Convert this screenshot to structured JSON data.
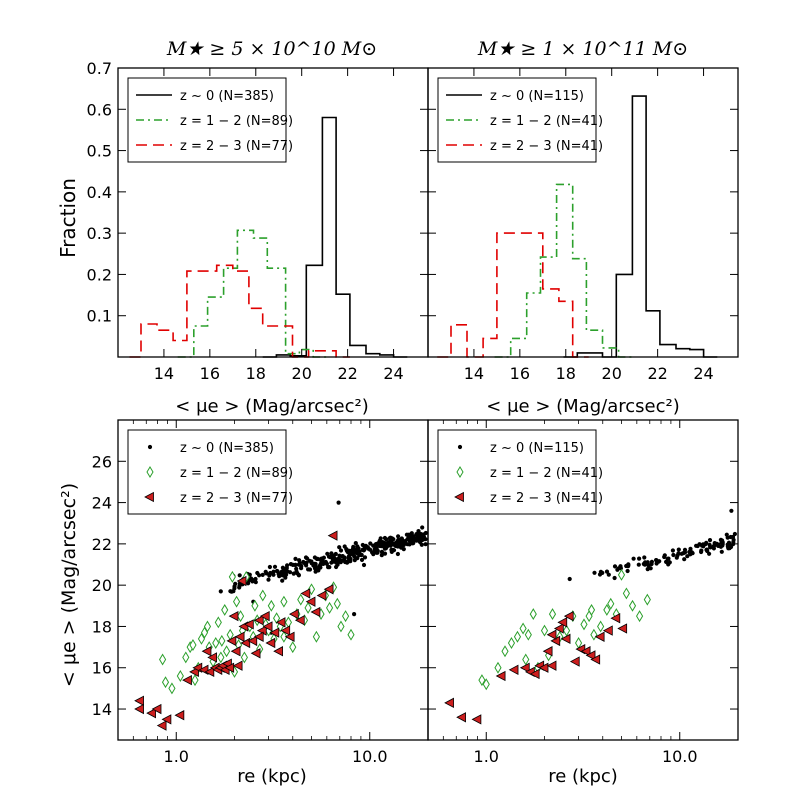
{
  "figure": {
    "titles": [
      "M★ ≥ 5 × 10^10 M⊙",
      "M★ ≥ 1 × 10^11 M⊙"
    ],
    "hist_xlabel": "< μe > (Mag/arcsec²)",
    "hist_ylabel": "Fraction",
    "scatter_xlabel": "re (kpc)",
    "scatter_ylabel": "< μe > (Mag/arcsec²)"
  },
  "colors": {
    "z0": "#000000",
    "z12": "#2ca02c",
    "z23": "#e00000",
    "z23_fill": "#cc1e1e"
  },
  "chart_data": [
    {
      "type": "histogram",
      "panel": "top-left",
      "title": "M★ ≥ 5 × 10^10 M⊙",
      "ylabel": "Fraction",
      "xlabel": "< μe > (Mag/arcsec²)",
      "xlim": [
        12.0,
        25.5
      ],
      "ylim": [
        0.0,
        0.7
      ],
      "xticks": [
        14,
        16,
        18,
        20,
        22,
        24
      ],
      "yticks": [
        0.1,
        0.2,
        0.3,
        0.4,
        0.5,
        0.6,
        0.7
      ],
      "legend": {
        "position": "top-left",
        "entries": [
          "z ~ 0 (N=385)",
          "z = 1 − 2 (N=89)",
          "z = 2 − 3 (N=77)"
        ]
      },
      "series": [
        {
          "name": "z ~ 0 (N=385)",
          "style": "solid",
          "color": "#000000",
          "edges": [
            18.3,
            18.9,
            19.5,
            20.2,
            20.9,
            21.5,
            22.1,
            22.8,
            23.4,
            24.0,
            24.6
          ],
          "values": [
            0.0,
            0.005,
            0.003,
            0.222,
            0.58,
            0.152,
            0.028,
            0.008,
            0.005,
            0.0
          ]
        },
        {
          "name": "z = 1 − 2 (N=89)",
          "style": "dashdot",
          "color": "#2ca02c",
          "edges": [
            14.6,
            15.3,
            15.9,
            16.6,
            17.2,
            17.9,
            18.5,
            19.3,
            19.9,
            20.5,
            21.1
          ],
          "values": [
            0.0,
            0.075,
            0.145,
            0.215,
            0.307,
            0.288,
            0.215,
            0.008,
            0.018,
            0.0
          ]
        },
        {
          "name": "z = 2 − 3 (N=77)",
          "style": "dashed",
          "color": "#e00000",
          "edges": [
            12.5,
            13.0,
            13.7,
            14.4,
            15.0,
            15.7,
            16.3,
            17.0,
            17.7,
            18.3,
            19.0,
            19.6,
            20.3,
            20.9,
            21.5,
            22.1
          ],
          "values": [
            0.0,
            0.08,
            0.065,
            0.04,
            0.208,
            0.208,
            0.222,
            0.208,
            0.118,
            0.075,
            0.075,
            0.0,
            0.015,
            0.015,
            0.0
          ]
        }
      ]
    },
    {
      "type": "histogram",
      "panel": "top-right",
      "title": "M★ ≥ 1 × 10^11 M⊙",
      "xlabel": "< μe > (Mag/arcsec²)",
      "xlim": [
        12.0,
        25.5
      ],
      "ylim": [
        0.0,
        0.7
      ],
      "xticks": [
        14,
        16,
        18,
        20,
        22,
        24
      ],
      "legend": {
        "position": "top-left",
        "entries": [
          "z ~ 0 (N=115)",
          "z = 1 − 2 (N=41)",
          "z = 2 − 3 (N=41)"
        ]
      },
      "series": [
        {
          "name": "z ~ 0 (N=115)",
          "style": "solid",
          "color": "#000000",
          "edges": [
            17.9,
            18.5,
            19.6,
            20.2,
            20.9,
            21.5,
            22.1,
            22.8,
            23.4,
            24.0,
            24.6
          ],
          "values": [
            0.0,
            0.01,
            0.0,
            0.2,
            0.632,
            0.112,
            0.03,
            0.02,
            0.018,
            0.0
          ]
        },
        {
          "name": "z = 1 − 2 (N=41)",
          "style": "dashdot",
          "color": "#2ca02c",
          "edges": [
            14.9,
            15.6,
            16.3,
            16.9,
            17.6,
            18.3,
            18.9,
            19.6,
            20.3,
            20.9
          ],
          "values": [
            0.0,
            0.045,
            0.155,
            0.242,
            0.418,
            0.238,
            0.065,
            0.022,
            0.0
          ]
        },
        {
          "name": "z = 2 − 3 (N=41)",
          "style": "dashed",
          "color": "#e00000",
          "edges": [
            12.4,
            13.0,
            13.7,
            14.4,
            15.0,
            15.7,
            16.3,
            17.0,
            17.7,
            18.3,
            19.0
          ],
          "values": [
            0.0,
            0.078,
            0.0,
            0.045,
            0.3,
            0.3,
            0.3,
            0.165,
            0.135,
            0.0
          ]
        }
      ]
    },
    {
      "type": "scatter",
      "panel": "bottom-left",
      "xscale": "log",
      "xlabel": "re (kpc)",
      "ylabel": "< μe > (Mag/arcsec²)",
      "xlim": [
        0.5,
        20.0
      ],
      "ylim": [
        12.5,
        28.0
      ],
      "xticks": [
        1.0,
        10.0
      ],
      "yticks": [
        14,
        16,
        18,
        20,
        22,
        24,
        26
      ],
      "legend": {
        "position": "top-left",
        "entries": [
          "z ~ 0 (N=385)",
          "z = 1 − 2 (N=89)",
          "z = 2 − 3 (N=77)"
        ]
      },
      "series": [
        {
          "name": "z ~ 0 (N=385)",
          "marker": "dot",
          "color": "#000000",
          "count": 385,
          "trend": {
            "x_range": [
              1.8,
              19.5
            ],
            "slope": 2.3,
            "y_at_10": 21.7,
            "scatter": 0.55
          },
          "extra_points": [
            [
              1.7,
              19.7
            ],
            [
              6.9,
              24.0
            ],
            [
              8.3,
              18.6
            ],
            [
              3.1,
              17.7
            ],
            [
              2.5,
              19.2
            ]
          ]
        },
        {
          "name": "z = 1 − 2 (N=89)",
          "marker": "diamond",
          "color": "#2ca02c",
          "points": [
            [
              0.85,
              16.4
            ],
            [
              0.88,
              15.3
            ],
            [
              0.95,
              15.0
            ],
            [
              1.05,
              15.6
            ],
            [
              1.12,
              16.5
            ],
            [
              1.18,
              17.0
            ],
            [
              1.22,
              17.1
            ],
            [
              1.3,
              16.0
            ],
            [
              1.35,
              17.4
            ],
            [
              1.4,
              17.7
            ],
            [
              1.45,
              18.0
            ],
            [
              1.48,
              17.0
            ],
            [
              1.55,
              16.3
            ],
            [
              1.6,
              17.2
            ],
            [
              1.65,
              18.2
            ],
            [
              1.72,
              17.3
            ],
            [
              1.78,
              18.8
            ],
            [
              1.82,
              16.8
            ],
            [
              1.9,
              17.6
            ],
            [
              1.95,
              20.4
            ],
            [
              2.05,
              19.2
            ],
            [
              2.1,
              17.1
            ],
            [
              2.15,
              18.5
            ],
            [
              2.25,
              16.5
            ],
            [
              2.3,
              20.4
            ],
            [
              2.4,
              18.0
            ],
            [
              2.5,
              17.5
            ],
            [
              2.55,
              19.0
            ],
            [
              2.62,
              18.3
            ],
            [
              2.7,
              16.9
            ],
            [
              2.8,
              19.5
            ],
            [
              2.9,
              18.1
            ],
            [
              3.0,
              17.8
            ],
            [
              3.1,
              19.0
            ],
            [
              3.2,
              17.4
            ],
            [
              3.3,
              18.4
            ],
            [
              3.45,
              18.0
            ],
            [
              3.6,
              19.2
            ],
            [
              3.8,
              18.2
            ],
            [
              4.0,
              17.0
            ],
            [
              4.2,
              18.6
            ],
            [
              4.4,
              19.3
            ],
            [
              4.6,
              18.3
            ],
            [
              4.8,
              18.9
            ],
            [
              5.0,
              19.8
            ],
            [
              5.3,
              17.5
            ],
            [
              5.6,
              18.6
            ],
            [
              5.9,
              19.5
            ],
            [
              6.2,
              18.9
            ],
            [
              6.5,
              19.9
            ],
            [
              6.8,
              19.1
            ],
            [
              7.1,
              18.0
            ],
            [
              7.5,
              18.5
            ],
            [
              8.0,
              17.6
            ],
            [
              2.0,
              15.8
            ],
            [
              1.25,
              15.4
            ],
            [
              1.7,
              16.5
            ],
            [
              2.2,
              17.8
            ],
            [
              3.6,
              17.5
            ]
          ]
        },
        {
          "name": "z = 2 − 3 (N=77)",
          "marker": "triangle-left",
          "color": "#cc1e1e",
          "points": [
            [
              0.65,
              14.4
            ],
            [
              0.65,
              14.0
            ],
            [
              0.75,
              13.8
            ],
            [
              0.8,
              14.0
            ],
            [
              0.85,
              13.2
            ],
            [
              0.9,
              13.5
            ],
            [
              1.05,
              13.7
            ],
            [
              1.15,
              15.4
            ],
            [
              1.25,
              15.8
            ],
            [
              1.3,
              16.0
            ],
            [
              1.4,
              15.9
            ],
            [
              1.45,
              16.8
            ],
            [
              1.5,
              15.8
            ],
            [
              1.55,
              16.5
            ],
            [
              1.6,
              16.0
            ],
            [
              1.65,
              15.9
            ],
            [
              1.7,
              16.0
            ],
            [
              1.75,
              16.1
            ],
            [
              1.8,
              15.9
            ],
            [
              1.85,
              16.2
            ],
            [
              1.9,
              16.0
            ],
            [
              1.95,
              17.3
            ],
            [
              2.0,
              18.5
            ],
            [
              2.05,
              16.8
            ],
            [
              2.1,
              16.1
            ],
            [
              2.15,
              17.5
            ],
            [
              2.2,
              20.2
            ],
            [
              2.25,
              18.0
            ],
            [
              2.3,
              17.2
            ],
            [
              2.4,
              18.1
            ],
            [
              2.5,
              17.3
            ],
            [
              2.6,
              16.7
            ],
            [
              2.7,
              18.3
            ],
            [
              2.8,
              17.8
            ],
            [
              2.9,
              18.5
            ],
            [
              3.0,
              18.0
            ],
            [
              3.1,
              17.2
            ],
            [
              3.25,
              17.7
            ],
            [
              3.4,
              16.8
            ],
            [
              3.5,
              18.2
            ],
            [
              3.7,
              17.8
            ],
            [
              3.9,
              17.5
            ],
            [
              4.1,
              18.6
            ],
            [
              4.4,
              18.3
            ],
            [
              4.7,
              19.6
            ],
            [
              5.0,
              19.2
            ],
            [
              5.3,
              18.7
            ],
            [
              5.7,
              19.5
            ],
            [
              6.2,
              19.8
            ],
            [
              6.5,
              22.4
            ],
            [
              2.7,
              17.5
            ]
          ]
        }
      ]
    },
    {
      "type": "scatter",
      "panel": "bottom-right",
      "xscale": "log",
      "xlabel": "re (kpc)",
      "xlim": [
        0.5,
        20.0
      ],
      "ylim": [
        12.5,
        28.0
      ],
      "xticks": [
        1.0,
        10.0
      ],
      "legend": {
        "position": "top-left",
        "entries": [
          "z ~ 0 (N=115)",
          "z = 1 − 2 (N=41)",
          "z = 2 − 3 (N=41)"
        ]
      },
      "series": [
        {
          "name": "z ~ 0 (N=115)",
          "marker": "dot",
          "color": "#000000",
          "count": 115,
          "trend": {
            "x_range": [
              2.8,
              19.5
            ],
            "slope": 2.3,
            "y_at_10": 21.5,
            "scatter": 0.45
          },
          "extra_points": [
            [
              2.7,
              20.3
            ],
            [
              18.5,
              23.6
            ]
          ]
        },
        {
          "name": "z = 1 − 2 (N=41)",
          "marker": "diamond",
          "color": "#2ca02c",
          "points": [
            [
              0.95,
              15.4
            ],
            [
              1.0,
              15.2
            ],
            [
              1.15,
              16.0
            ],
            [
              1.25,
              16.8
            ],
            [
              1.35,
              17.2
            ],
            [
              1.45,
              17.5
            ],
            [
              1.55,
              17.9
            ],
            [
              1.6,
              16.4
            ],
            [
              1.65,
              17.6
            ],
            [
              1.75,
              18.6
            ],
            [
              1.85,
              16.0
            ],
            [
              2.0,
              17.8
            ],
            [
              2.1,
              16.6
            ],
            [
              2.2,
              18.6
            ],
            [
              2.4,
              17.5
            ],
            [
              2.6,
              17.8
            ],
            [
              2.8,
              18.5
            ],
            [
              3.0,
              17.2
            ],
            [
              3.2,
              18.1
            ],
            [
              3.4,
              18.5
            ],
            [
              3.6,
              17.6
            ],
            [
              3.9,
              18.0
            ],
            [
              4.2,
              18.8
            ],
            [
              4.4,
              19.1
            ],
            [
              4.7,
              18.6
            ],
            [
              5.0,
              20.5
            ],
            [
              5.3,
              19.6
            ],
            [
              5.7,
              19.0
            ],
            [
              6.2,
              18.5
            ],
            [
              6.8,
              19.3
            ],
            [
              3.5,
              18.8
            ]
          ]
        },
        {
          "name": "z = 2 − 3 (N=41)",
          "marker": "triangle-left",
          "color": "#cc1e1e",
          "points": [
            [
              0.65,
              14.3
            ],
            [
              0.75,
              13.6
            ],
            [
              0.9,
              13.5
            ],
            [
              1.2,
              15.6
            ],
            [
              1.4,
              15.9
            ],
            [
              1.6,
              16.0
            ],
            [
              1.7,
              15.8
            ],
            [
              1.8,
              15.7
            ],
            [
              1.9,
              16.1
            ],
            [
              2.0,
              16.0
            ],
            [
              2.1,
              16.8
            ],
            [
              2.2,
              16.1
            ],
            [
              2.3,
              17.3
            ],
            [
              2.4,
              17.9
            ],
            [
              2.5,
              18.2
            ],
            [
              2.6,
              17.4
            ],
            [
              2.7,
              18.5
            ],
            [
              2.9,
              16.3
            ],
            [
              3.1,
              16.9
            ],
            [
              3.3,
              16.8
            ],
            [
              3.5,
              16.6
            ],
            [
              3.7,
              16.4
            ],
            [
              3.9,
              17.5
            ],
            [
              4.3,
              17.8
            ],
            [
              4.7,
              18.4
            ],
            [
              5.1,
              17.9
            ],
            [
              2.2,
              17.6
            ]
          ]
        }
      ]
    }
  ]
}
